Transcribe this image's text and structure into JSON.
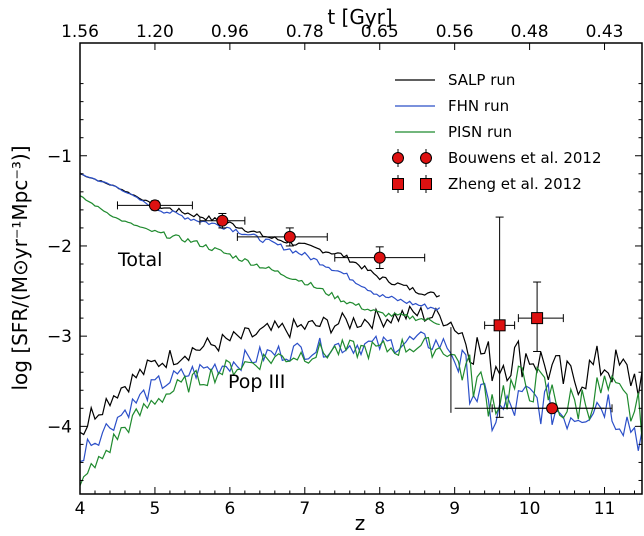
{
  "chart_data": {
    "type": "line",
    "xlabel": "z",
    "ylabel": "log [SFR/(M⊙yr⁻¹Mpc⁻³)]",
    "top_axis_label": "t [Gyr]",
    "xlim": [
      4,
      11.5
    ],
    "ylim": [
      -4.75,
      0.25
    ],
    "x_ticks": [
      4,
      5,
      6,
      7,
      8,
      9,
      10,
      11
    ],
    "y_ticks": [
      -4,
      -3,
      -2,
      -1
    ],
    "y_tick_labels": [
      "−4",
      "−3",
      "−2",
      "−1"
    ],
    "top_ticks": [
      {
        "z": 4.0,
        "label": "1.56"
      },
      {
        "z": 5.0,
        "label": "1.20"
      },
      {
        "z": 6.0,
        "label": "0.96"
      },
      {
        "z": 7.0,
        "label": "0.78"
      },
      {
        "z": 8.0,
        "label": "0.65"
      },
      {
        "z": 9.0,
        "label": "0.56"
      },
      {
        "z": 10.0,
        "label": "0.48"
      },
      {
        "z": 11.0,
        "label": "0.43"
      }
    ],
    "annotations": [
      "Total",
      "Pop III"
    ],
    "legend_position": "top-right",
    "series": [
      {
        "name": "SALP run",
        "color": "#000000",
        "group": "Total",
        "x": [
          4.0,
          4.5,
          5.0,
          5.5,
          6.0,
          6.5,
          7.0,
          7.5,
          8.0,
          8.5,
          8.8
        ],
        "y": [
          -1.2,
          -1.35,
          -1.55,
          -1.65,
          -1.75,
          -1.9,
          -2.0,
          -2.1,
          -2.35,
          -2.5,
          -2.55
        ]
      },
      {
        "name": "SALP run",
        "color": "#000000",
        "group": "Pop III",
        "x": [
          4.0,
          4.5,
          5.0,
          5.5,
          6.0,
          6.5,
          7.0,
          7.5,
          8.0,
          8.5,
          8.9,
          9.5,
          10.0,
          10.5,
          11.0,
          11.5
        ],
        "y": [
          -4.0,
          -3.6,
          -3.3,
          -3.15,
          -3.05,
          -2.95,
          -2.9,
          -2.85,
          -2.8,
          -2.75,
          -2.8,
          -3.3,
          -3.2,
          -3.5,
          -3.3,
          -3.5
        ]
      },
      {
        "name": "FHN run",
        "color": "#2b4fc8",
        "group": "Total",
        "x": [
          4.0,
          4.5,
          5.0,
          5.5,
          6.0,
          6.5,
          7.0,
          7.5,
          8.0,
          8.5,
          8.8
        ],
        "y": [
          -1.2,
          -1.35,
          -1.58,
          -1.7,
          -1.8,
          -1.95,
          -2.1,
          -2.3,
          -2.55,
          -2.65,
          -2.7
        ]
      },
      {
        "name": "FHN run",
        "color": "#2b4fc8",
        "group": "Pop III",
        "x": [
          4.0,
          4.5,
          5.0,
          5.5,
          6.0,
          6.5,
          7.0,
          7.5,
          8.0,
          8.5,
          8.9,
          9.5,
          10.0,
          10.5,
          11.0,
          11.5
        ],
        "y": [
          -4.3,
          -3.9,
          -3.55,
          -3.4,
          -3.3,
          -3.2,
          -3.15,
          -3.1,
          -3.1,
          -3.05,
          -3.1,
          -3.9,
          -3.7,
          -3.85,
          -3.7,
          -4.1
        ]
      },
      {
        "name": "PISN run",
        "color": "#1f8a2e",
        "group": "Total",
        "x": [
          4.0,
          4.5,
          5.0,
          5.5,
          6.0,
          6.5,
          7.0,
          7.5,
          8.0,
          8.5,
          8.8
        ],
        "y": [
          -1.45,
          -1.7,
          -1.85,
          -1.95,
          -2.1,
          -2.25,
          -2.4,
          -2.6,
          -2.75,
          -2.8,
          -2.85
        ]
      },
      {
        "name": "PISN run",
        "color": "#1f8a2e",
        "group": "Pop III",
        "x": [
          4.0,
          4.5,
          5.0,
          5.5,
          6.0,
          6.5,
          7.0,
          7.5,
          8.0,
          8.5,
          8.9,
          9.5,
          10.0,
          10.5,
          11.0,
          11.5
        ],
        "y": [
          -4.7,
          -4.1,
          -3.7,
          -3.5,
          -3.35,
          -3.25,
          -3.2,
          -3.15,
          -3.15,
          -3.1,
          -3.15,
          -3.7,
          -3.5,
          -3.8,
          -3.6,
          -3.9
        ]
      }
    ],
    "observations": [
      {
        "name": "Bouwens et al. 2012",
        "marker": "circle",
        "color": "#dd1111",
        "points": [
          {
            "x": 5.0,
            "y": -1.55,
            "xerr": [
              0.5,
              0.5
            ],
            "yerr": [
              0.05,
              0.05
            ]
          },
          {
            "x": 5.9,
            "y": -1.72,
            "xerr": [
              0.3,
              0.3
            ],
            "yerr": [
              0.08,
              0.08
            ]
          },
          {
            "x": 6.8,
            "y": -1.9,
            "xerr": [
              0.7,
              0.5
            ],
            "yerr": [
              0.1,
              0.1
            ]
          },
          {
            "x": 8.0,
            "y": -2.13,
            "xerr": [
              0.6,
              0.6
            ],
            "yerr": [
              0.12,
              0.12
            ]
          },
          {
            "x": 10.3,
            "y": -3.8,
            "xerr": [
              0.8,
              0.8
            ],
            "yerr": [
              0.0,
              0.0
            ]
          }
        ]
      },
      {
        "name": "Zheng et al. 2012",
        "marker": "square",
        "color": "#dd1111",
        "points": [
          {
            "x": 9.6,
            "y": -2.88,
            "xerr": [
              0.2,
              0.2
            ],
            "yerr": [
              1.02,
              1.2
            ]
          },
          {
            "x": 10.1,
            "y": -2.8,
            "xerr": [
              0.25,
              0.35
            ],
            "yerr": [
              0.37,
              0.4
            ]
          }
        ]
      }
    ]
  }
}
